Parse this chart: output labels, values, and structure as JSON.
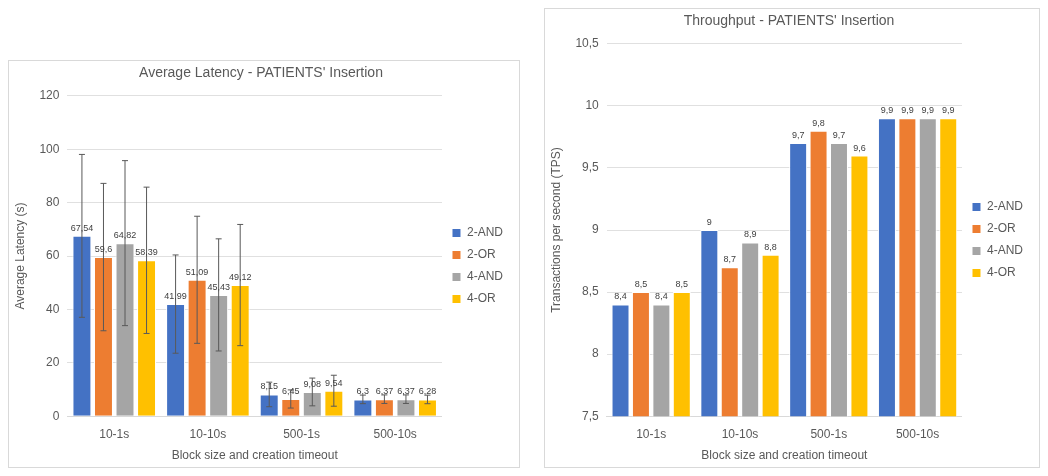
{
  "chart_data": [
    {
      "type": "bar",
      "title": "Average Latency - PATIENTS' Insertion",
      "xlabel": "Block size and creation timeout",
      "ylabel": "Average Latency (s)",
      "categories": [
        "10-1s",
        "10-10s",
        "500-1s",
        "500-10s"
      ],
      "series": [
        {
          "name": "2-AND",
          "color": "#4472c4",
          "values": [
            67.54,
            41.99,
            8.15,
            6.3
          ],
          "errors": [
            30.5,
            18.4,
            4.6,
            1.6
          ],
          "value_labels": [
            "67,54",
            "41,99",
            "8,15",
            "6,3"
          ]
        },
        {
          "name": "2-OR",
          "color": "#ed7d31",
          "values": [
            59.6,
            51.09,
            6.45,
            6.37
          ],
          "errors": [
            27.6,
            23.8,
            3.4,
            1.6
          ],
          "value_labels": [
            "59,6",
            "51,09",
            "6,45",
            "6,37"
          ]
        },
        {
          "name": "4-AND",
          "color": "#a5a5a5",
          "values": [
            64.82,
            45.43,
            9.08,
            6.37
          ],
          "errors": [
            30.9,
            21,
            5.2,
            1.6
          ],
          "value_labels": [
            "64,82",
            "45,43",
            "9,08",
            "6,37"
          ]
        },
        {
          "name": "4-OR",
          "color": "#ffc000",
          "values": [
            58.39,
            49.12,
            9.54,
            6.28
          ],
          "errors": [
            27.4,
            22.7,
            5.8,
            1.6
          ],
          "value_labels": [
            "58,39",
            "49,12",
            "9,54",
            "6,28"
          ]
        }
      ],
      "ylim": [
        0,
        120
      ],
      "yticks": [
        0,
        20,
        40,
        60,
        80,
        100,
        120
      ],
      "grid": "y",
      "legend": "right"
    },
    {
      "type": "bar",
      "title": "Throughput - PATIENTS' Insertion",
      "xlabel": "Block size and creation timeout",
      "ylabel": "Transactions per second (TPS)",
      "categories": [
        "10-1s",
        "10-10s",
        "500-1s",
        "500-10s"
      ],
      "series": [
        {
          "name": "2-AND",
          "color": "#4472c4",
          "values": [
            8.4,
            9,
            9.7,
            9.9
          ],
          "value_labels": [
            "8,4",
            "9",
            "9,7",
            "9,9"
          ]
        },
        {
          "name": "2-OR",
          "color": "#ed7d31",
          "values": [
            8.5,
            8.7,
            9.8,
            9.9
          ],
          "value_labels": [
            "8,5",
            "8,7",
            "9,8",
            "9,9"
          ]
        },
        {
          "name": "4-AND",
          "color": "#a5a5a5",
          "values": [
            8.4,
            8.9,
            9.7,
            9.9
          ],
          "value_labels": [
            "8,4",
            "8,9",
            "9,7",
            "9,9"
          ]
        },
        {
          "name": "4-OR",
          "color": "#ffc000",
          "values": [
            8.5,
            8.8,
            9.6,
            9.9
          ],
          "value_labels": [
            "8,5",
            "8,8",
            "9,6",
            "9,9"
          ]
        }
      ],
      "ylim": [
        7.5,
        10.5
      ],
      "yticks": [
        {
          "value": 7.5,
          "label": "7,5"
        },
        8,
        {
          "value": 8.5,
          "label": "8,5"
        },
        9,
        {
          "value": 9.5,
          "label": "9,5"
        },
        10,
        {
          "value": 10.5,
          "label": "10,5"
        }
      ],
      "grid": "y",
      "legend": "right"
    }
  ]
}
